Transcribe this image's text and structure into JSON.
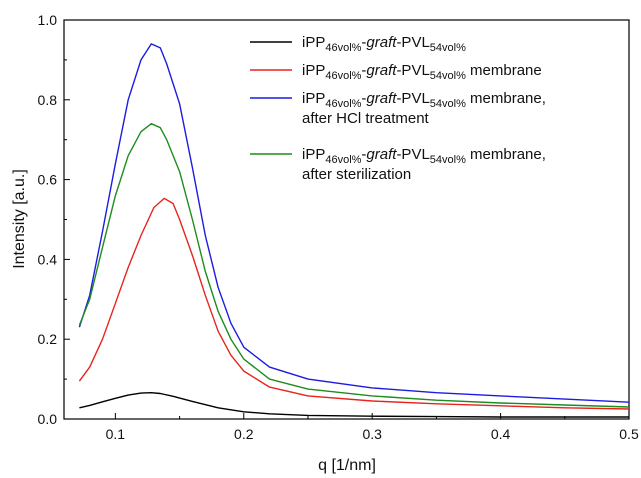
{
  "chart_data": {
    "type": "line",
    "xlabel": "q [1/nm]",
    "ylabel": "Intensity [a.u.]",
    "xlim": [
      0.06,
      0.5
    ],
    "ylim": [
      0.0,
      1.0
    ],
    "x_ticks": [
      "0.1",
      "0.2",
      "0.3",
      "0.4",
      "0.5"
    ],
    "y_ticks": [
      "0.0",
      "0.2",
      "0.4",
      "0.6",
      "0.8",
      "1.0"
    ],
    "legend_placement": "top-right",
    "grid": false,
    "series": [
      {
        "name": "iPP46vol%-graft-PVL54vol%",
        "color": "#000000",
        "legend": {
          "l1a": "iPP",
          "l1s1": "46vol%",
          "l1b": "-",
          "l1c": "graft",
          "l1d": "-PVL",
          "l1s2": "54vol%",
          "l1e": "",
          "l2": ""
        },
        "points": [
          [
            0.072,
            0.028
          ],
          [
            0.08,
            0.034
          ],
          [
            0.09,
            0.043
          ],
          [
            0.1,
            0.052
          ],
          [
            0.11,
            0.06
          ],
          [
            0.12,
            0.065
          ],
          [
            0.128,
            0.066
          ],
          [
            0.135,
            0.064
          ],
          [
            0.145,
            0.057
          ],
          [
            0.16,
            0.044
          ],
          [
            0.18,
            0.028
          ],
          [
            0.2,
            0.018
          ],
          [
            0.22,
            0.013
          ],
          [
            0.25,
            0.009
          ],
          [
            0.3,
            0.007
          ],
          [
            0.35,
            0.006
          ],
          [
            0.4,
            0.005
          ],
          [
            0.45,
            0.005
          ],
          [
            0.5,
            0.005
          ]
        ]
      },
      {
        "name": "iPP46vol%-graft-PVL54vol% membrane",
        "color": "#e8241c",
        "legend": {
          "l1a": "iPP",
          "l1s1": "46vol%",
          "l1b": "-",
          "l1c": "graft",
          "l1d": "-PVL",
          "l1s2": "54vol%",
          "l1e": " membrane",
          "l2": ""
        },
        "points": [
          [
            0.072,
            0.095
          ],
          [
            0.08,
            0.13
          ],
          [
            0.09,
            0.2
          ],
          [
            0.1,
            0.29
          ],
          [
            0.11,
            0.38
          ],
          [
            0.12,
            0.46
          ],
          [
            0.13,
            0.53
          ],
          [
            0.138,
            0.553
          ],
          [
            0.145,
            0.54
          ],
          [
            0.15,
            0.5
          ],
          [
            0.16,
            0.41
          ],
          [
            0.17,
            0.31
          ],
          [
            0.18,
            0.22
          ],
          [
            0.19,
            0.16
          ],
          [
            0.2,
            0.12
          ],
          [
            0.22,
            0.08
          ],
          [
            0.25,
            0.058
          ],
          [
            0.3,
            0.045
          ],
          [
            0.35,
            0.038
          ],
          [
            0.4,
            0.033
          ],
          [
            0.45,
            0.028
          ],
          [
            0.5,
            0.025
          ]
        ]
      },
      {
        "name": "iPP46vol%-graft-PVL54vol% membrane, after HCl treatment",
        "color": "#1c1ce0",
        "legend": {
          "l1a": "iPP",
          "l1s1": "46vol%",
          "l1b": "-",
          "l1c": "graft",
          "l1d": "-PVL",
          "l1s2": "54vol%",
          "l1e": " membrane,",
          "l2": "after HCl treatment"
        },
        "points": [
          [
            0.072,
            0.23
          ],
          [
            0.08,
            0.31
          ],
          [
            0.09,
            0.47
          ],
          [
            0.1,
            0.64
          ],
          [
            0.11,
            0.8
          ],
          [
            0.12,
            0.9
          ],
          [
            0.128,
            0.94
          ],
          [
            0.135,
            0.93
          ],
          [
            0.14,
            0.89
          ],
          [
            0.15,
            0.79
          ],
          [
            0.16,
            0.63
          ],
          [
            0.17,
            0.46
          ],
          [
            0.18,
            0.33
          ],
          [
            0.19,
            0.24
          ],
          [
            0.2,
            0.18
          ],
          [
            0.22,
            0.13
          ],
          [
            0.25,
            0.1
          ],
          [
            0.3,
            0.078
          ],
          [
            0.35,
            0.066
          ],
          [
            0.4,
            0.058
          ],
          [
            0.45,
            0.05
          ],
          [
            0.5,
            0.042
          ]
        ]
      },
      {
        "name": "iPP46vol%-graft-PVL54vol% membrane, after sterilization",
        "color": "#1e8c1e",
        "legend": {
          "l1a": "iPP",
          "l1s1": "46vol%",
          "l1b": "-",
          "l1c": "graft",
          "l1d": "-PVL",
          "l1s2": "54vol%",
          "l1e": " membrane,",
          "l2": "after sterilization"
        },
        "points": [
          [
            0.072,
            0.235
          ],
          [
            0.08,
            0.3
          ],
          [
            0.09,
            0.43
          ],
          [
            0.1,
            0.56
          ],
          [
            0.11,
            0.66
          ],
          [
            0.12,
            0.72
          ],
          [
            0.128,
            0.74
          ],
          [
            0.135,
            0.73
          ],
          [
            0.14,
            0.7
          ],
          [
            0.15,
            0.62
          ],
          [
            0.16,
            0.5
          ],
          [
            0.17,
            0.37
          ],
          [
            0.18,
            0.27
          ],
          [
            0.19,
            0.2
          ],
          [
            0.2,
            0.15
          ],
          [
            0.22,
            0.1
          ],
          [
            0.25,
            0.075
          ],
          [
            0.3,
            0.058
          ],
          [
            0.35,
            0.047
          ],
          [
            0.4,
            0.04
          ],
          [
            0.45,
            0.035
          ],
          [
            0.5,
            0.03
          ]
        ]
      }
    ]
  }
}
